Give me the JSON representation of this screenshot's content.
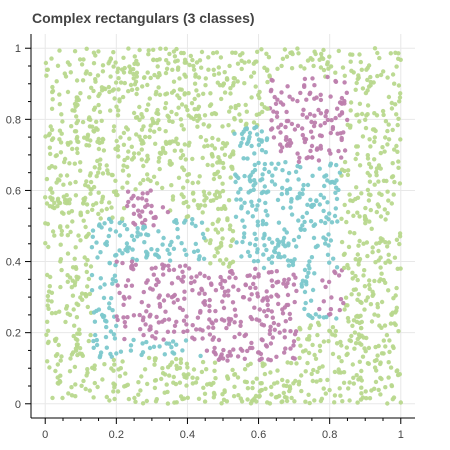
{
  "chart_data": {
    "type": "scatter",
    "title": "Complex rectangulars (3 classes)",
    "xlabel": "",
    "ylabel": "",
    "xlim": [
      -0.04,
      1.04
    ],
    "ylim": [
      -0.04,
      1.04
    ],
    "x_ticks": [
      0,
      0.2,
      0.4,
      0.6,
      0.8,
      1
    ],
    "y_ticks": [
      0,
      0.2,
      0.4,
      0.6,
      0.8,
      1
    ],
    "grid": true,
    "legend": "none",
    "series": [
      {
        "color": "#b8d88d",
        "region": "background (all points outside class rectangles)",
        "approx_count": 2000
      },
      {
        "color": "#7cc8cc",
        "rectangles": [
          {
            "x": [
              0.13,
              0.45
            ],
            "y": [
              0.13,
              0.52
            ]
          },
          {
            "x": [
              0.53,
              0.83
            ],
            "y": [
              0.23,
              0.78
            ]
          }
        ]
      },
      {
        "color": "#bd7ead",
        "rectangles": [
          {
            "x": [
              0.2,
              0.45
            ],
            "y": [
              0.18,
              0.4
            ]
          },
          {
            "x": [
              0.23,
              0.35
            ],
            "y": [
              0.5,
              0.6
            ]
          },
          {
            "x": [
              0.45,
              0.71
            ],
            "y": [
              0.12,
              0.38
            ]
          },
          {
            "x": [
              0.63,
              0.85
            ],
            "y": [
              0.68,
              0.92
            ]
          },
          {
            "x": [
              0.77,
              0.84
            ],
            "y": [
              0.25,
              0.38
            ]
          }
        ]
      }
    ]
  }
}
